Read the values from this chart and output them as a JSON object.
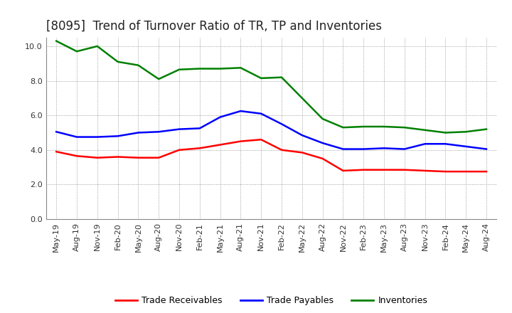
{
  "title": "[8095]  Trend of Turnover Ratio of TR, TP and Inventories",
  "xlabels": [
    "May-19",
    "Aug-19",
    "Nov-19",
    "Feb-20",
    "May-20",
    "Aug-20",
    "Nov-20",
    "Feb-21",
    "May-21",
    "Aug-21",
    "Nov-21",
    "Feb-22",
    "May-22",
    "Aug-22",
    "Nov-22",
    "Feb-23",
    "May-23",
    "Aug-23",
    "Nov-23",
    "Feb-24",
    "May-24",
    "Aug-24"
  ],
  "trade_receivables": [
    3.9,
    3.65,
    3.55,
    3.6,
    3.55,
    3.55,
    4.0,
    4.1,
    4.3,
    4.5,
    4.6,
    4.0,
    3.85,
    3.5,
    2.8,
    2.85,
    2.85,
    2.85,
    2.8,
    2.75,
    2.75,
    2.75
  ],
  "trade_payables": [
    5.05,
    4.75,
    4.75,
    4.8,
    5.0,
    5.05,
    5.2,
    5.25,
    5.9,
    6.25,
    6.1,
    5.5,
    4.85,
    4.4,
    4.05,
    4.05,
    4.1,
    4.05,
    4.35,
    4.35,
    4.2,
    4.05
  ],
  "inventories": [
    10.3,
    9.7,
    10.0,
    9.1,
    8.9,
    8.1,
    8.65,
    8.7,
    8.7,
    8.75,
    8.15,
    8.2,
    7.0,
    5.8,
    5.3,
    5.35,
    5.35,
    5.3,
    5.15,
    5.0,
    5.05,
    5.2
  ],
  "color_tr": "#ff0000",
  "color_tp": "#0000ff",
  "color_inv": "#008000",
  "ylim": [
    0.0,
    10.5
  ],
  "yticks": [
    0.0,
    2.0,
    4.0,
    6.0,
    8.0,
    10.0
  ],
  "bg_color": "#ffffff",
  "grid_color": "#888888",
  "linewidth": 1.8,
  "legend_labels": [
    "Trade Receivables",
    "Trade Payables",
    "Inventories"
  ],
  "title_fontsize": 12,
  "title_color": "#222222",
  "tick_fontsize": 8,
  "legend_fontsize": 9
}
